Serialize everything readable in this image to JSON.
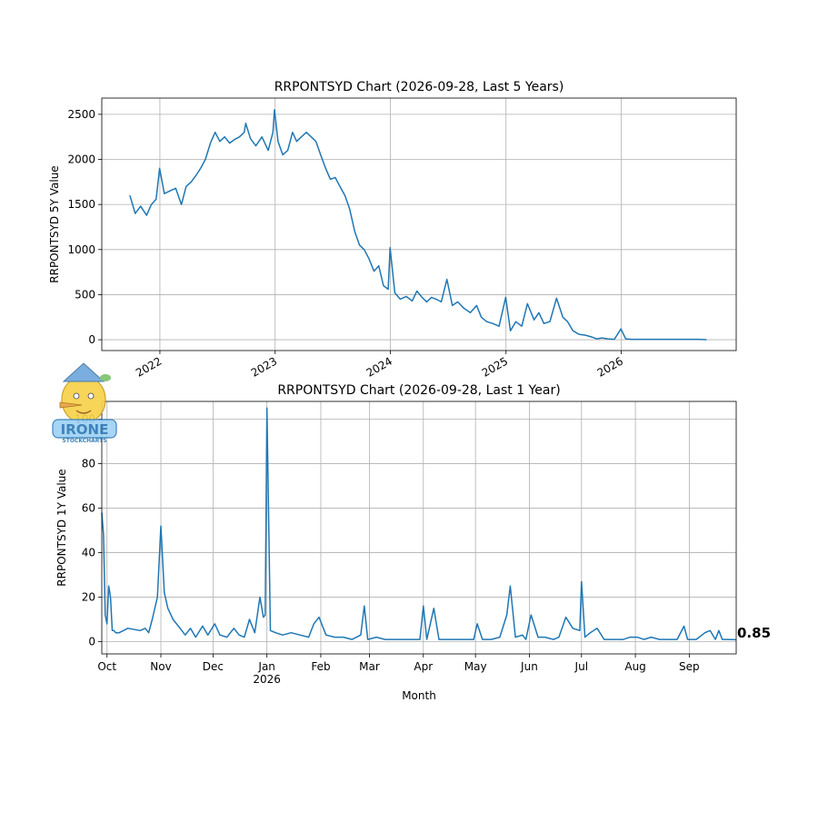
{
  "watermark": {
    "text": "IRONE",
    "subtext": "STOCKCHARTS",
    "icon": "cartoon-lemon-mascot-logo"
  },
  "chart_data": [
    {
      "type": "line",
      "title": "RRPONTSYD Chart (2026-09-28, Last 5 Years)",
      "xlabel": "",
      "ylabel": "RRPONTSYD 5Y Value",
      "x_ticks": [
        "2022",
        "2023",
        "2024",
        "2025",
        "2026"
      ],
      "x_range": [
        "2021-07-01",
        "2026-12-31"
      ],
      "y_ticks": [
        0,
        500,
        1000,
        1500,
        2000,
        2500
      ],
      "ylim": [
        -120,
        2680
      ],
      "grid": true,
      "color": "#1f77b4",
      "series": [
        {
          "x": [
            "2021-09-28",
            "2021-10-15",
            "2021-11-01",
            "2021-11-20",
            "2021-12-05",
            "2021-12-20",
            "2021-12-31",
            "2022-01-15",
            "2022-02-01",
            "2022-02-20",
            "2022-03-10",
            "2022-03-25",
            "2022-04-10",
            "2022-04-25",
            "2022-05-10",
            "2022-05-25",
            "2022-06-10",
            "2022-06-25",
            "2022-07-10",
            "2022-07-25",
            "2022-08-10",
            "2022-08-25",
            "2022-09-10",
            "2022-09-25",
            "2022-09-30",
            "2022-10-15",
            "2022-11-01",
            "2022-11-20",
            "2022-12-10",
            "2022-12-25",
            "2022-12-30",
            "2023-01-10",
            "2023-01-25",
            "2023-02-10",
            "2023-02-25",
            "2023-03-10",
            "2023-03-25",
            "2023-04-10",
            "2023-04-25",
            "2023-05-10",
            "2023-05-25",
            "2023-06-10",
            "2023-06-25",
            "2023-07-10",
            "2023-07-25",
            "2023-08-10",
            "2023-08-25",
            "2023-09-10",
            "2023-09-25",
            "2023-10-10",
            "2023-10-25",
            "2023-11-10",
            "2023-11-25",
            "2023-12-10",
            "2023-12-25",
            "2023-12-31",
            "2024-01-15",
            "2024-02-01",
            "2024-02-20",
            "2024-03-10",
            "2024-03-25",
            "2024-04-10",
            "2024-04-25",
            "2024-05-10",
            "2024-05-25",
            "2024-06-10",
            "2024-06-28",
            "2024-07-15",
            "2024-08-01",
            "2024-08-20",
            "2024-09-10",
            "2024-09-30",
            "2024-10-15",
            "2024-11-01",
            "2024-11-20",
            "2024-12-10",
            "2024-12-31",
            "2025-01-15",
            "2025-02-01",
            "2025-02-20",
            "2025-03-10",
            "2025-03-31",
            "2025-04-15",
            "2025-05-01",
            "2025-05-20",
            "2025-06-10",
            "2025-06-30",
            "2025-07-15",
            "2025-08-01",
            "2025-08-20",
            "2025-09-10",
            "2025-09-30",
            "2025-10-15",
            "2025-11-01",
            "2025-11-20",
            "2025-12-10",
            "2025-12-31",
            "2026-01-15",
            "2026-02-01",
            "2026-03-01",
            "2026-04-01",
            "2026-05-01",
            "2026-06-01",
            "2026-07-01",
            "2026-08-01",
            "2026-09-01",
            "2026-09-28"
          ],
          "values": [
            1600,
            1400,
            1480,
            1380,
            1500,
            1560,
            1900,
            1620,
            1650,
            1680,
            1500,
            1700,
            1750,
            1820,
            1900,
            2000,
            2180,
            2300,
            2200,
            2250,
            2180,
            2220,
            2250,
            2300,
            2400,
            2230,
            2150,
            2250,
            2100,
            2300,
            2550,
            2200,
            2050,
            2100,
            2300,
            2200,
            2250,
            2300,
            2250,
            2200,
            2050,
            1900,
            1780,
            1800,
            1700,
            1600,
            1450,
            1200,
            1050,
            1000,
            900,
            760,
            820,
            600,
            560,
            1020,
            520,
            450,
            480,
            430,
            540,
            470,
            420,
            470,
            450,
            420,
            670,
            380,
            420,
            350,
            300,
            380,
            250,
            200,
            180,
            150,
            470,
            100,
            200,
            150,
            400,
            220,
            300,
            180,
            200,
            460,
            250,
            200,
            100,
            60,
            50,
            30,
            10,
            20,
            10,
            5,
            120,
            10,
            5,
            5,
            5,
            5,
            5,
            5,
            5,
            5,
            1
          ]
        }
      ]
    },
    {
      "type": "line",
      "title": "RRPONTSYD Chart (2026-09-28, Last 1 Year)",
      "xlabel": "Month",
      "ylabel": "RRPONTSYD 1Y Value",
      "x_ticks": [
        "Oct",
        "Nov",
        "Dec",
        "Jan\n2026",
        "Feb",
        "Mar",
        "Apr",
        "May",
        "Jun",
        "Jul",
        "Aug",
        "Sep"
      ],
      "x_range": [
        "2025-09-28",
        "2026-09-28"
      ],
      "y_ticks": [
        0,
        20,
        40,
        60,
        80,
        100
      ],
      "ylim": [
        -5.5,
        108
      ],
      "grid": true,
      "color": "#1f77b4",
      "last_value_label": "0.85",
      "series": [
        {
          "x": [
            "2025-09-28",
            "2025-09-29",
            "2025-09-30",
            "2025-10-01",
            "2025-10-02",
            "2025-10-03",
            "2025-10-04",
            "2025-10-05",
            "2025-10-06",
            "2025-10-07",
            "2025-10-08",
            "2025-10-13",
            "2025-10-20",
            "2025-10-23",
            "2025-10-25",
            "2025-10-27",
            "2025-10-30",
            "2025-11-01",
            "2025-11-03",
            "2025-11-05",
            "2025-11-08",
            "2025-11-12",
            "2025-11-15",
            "2025-11-18",
            "2025-11-21",
            "2025-11-25",
            "2025-11-28",
            "2025-12-02",
            "2025-12-05",
            "2025-12-09",
            "2025-12-13",
            "2025-12-16",
            "2025-12-19",
            "2025-12-22",
            "2025-12-25",
            "2025-12-28",
            "2025-12-30",
            "2025-12-31",
            "2026-01-01",
            "2026-01-03",
            "2026-01-06",
            "2026-01-10",
            "2026-01-15",
            "2026-01-20",
            "2026-01-25",
            "2026-01-28",
            "2026-01-31",
            "2026-02-04",
            "2026-02-09",
            "2026-02-14",
            "2026-02-19",
            "2026-02-24",
            "2026-02-26",
            "2026-02-28",
            "2026-03-05",
            "2026-03-10",
            "2026-03-15",
            "2026-03-20",
            "2026-03-25",
            "2026-03-30",
            "2026-04-01",
            "2026-04-03",
            "2026-04-07",
            "2026-04-10",
            "2026-04-15",
            "2026-04-20",
            "2026-04-25",
            "2026-04-30",
            "2026-05-02",
            "2026-05-05",
            "2026-05-10",
            "2026-05-15",
            "2026-05-19",
            "2026-05-21",
            "2026-05-24",
            "2026-05-28",
            "2026-05-30",
            "2026-06-02",
            "2026-06-06",
            "2026-06-10",
            "2026-06-15",
            "2026-06-18",
            "2026-06-22",
            "2026-06-26",
            "2026-06-30",
            "2026-07-01",
            "2026-07-03",
            "2026-07-06",
            "2026-07-10",
            "2026-07-14",
            "2026-07-17",
            "2026-07-21",
            "2026-07-25",
            "2026-07-29",
            "2026-08-02",
            "2026-08-06",
            "2026-08-10",
            "2026-08-15",
            "2026-08-20",
            "2026-08-25",
            "2026-08-29",
            "2026-08-31",
            "2026-09-02",
            "2026-09-05",
            "2026-09-10",
            "2026-09-13",
            "2026-09-16",
            "2026-09-18",
            "2026-09-20",
            "2026-09-23",
            "2026-09-28"
          ],
          "values": [
            58,
            48,
            12,
            8,
            25,
            20,
            5,
            5,
            4,
            4,
            4,
            6,
            5,
            6,
            4,
            10,
            20,
            52,
            22,
            15,
            10,
            6,
            3,
            6,
            2,
            7,
            3,
            8,
            3,
            2,
            6,
            3,
            2,
            10,
            4,
            20,
            11,
            12,
            105,
            5,
            4,
            3,
            4,
            3,
            2,
            8,
            11,
            3,
            2,
            2,
            1,
            3,
            16,
            1,
            2,
            1,
            1,
            1,
            1,
            1,
            16,
            1,
            15,
            1,
            1,
            1,
            1,
            1,
            8,
            1,
            1,
            2,
            12,
            25,
            2,
            3,
            1,
            12,
            2,
            2,
            1,
            2,
            11,
            6,
            5,
            27,
            2,
            4,
            6,
            1,
            1,
            1,
            1,
            2,
            2,
            1,
            2,
            1,
            1,
            1,
            7,
            1,
            1,
            1,
            4,
            5,
            1,
            5,
            1,
            1,
            0.85
          ]
        }
      ]
    }
  ]
}
